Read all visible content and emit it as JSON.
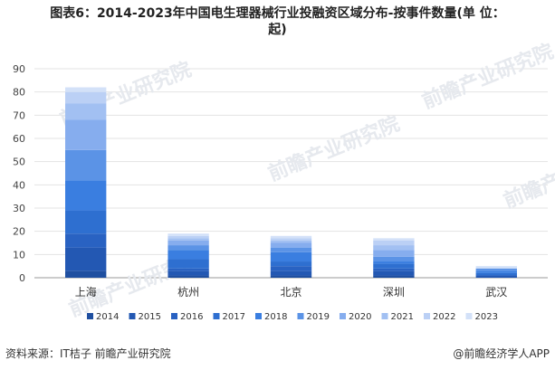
{
  "title_line1": "图表6：2014-2023年中国电生理器械行业投融资区域分布-按事件数量(单 位：",
  "title_line2": "起)",
  "source": "资料来源：IT桔子 前瞻产业研究院",
  "brand": "@前瞻经济学人APP",
  "watermark": "前瞻产业研究院",
  "chart_data": {
    "type": "bar",
    "stacked": true,
    "categories": [
      "上海",
      "杭州",
      "北京",
      "深圳",
      "武汉"
    ],
    "series": [
      {
        "name": "2014",
        "color": "#1f4fa0",
        "values": [
          3,
          1,
          1,
          1,
          0
        ]
      },
      {
        "name": "2015",
        "color": "#2358b3",
        "values": [
          10,
          2,
          2,
          2,
          1
        ]
      },
      {
        "name": "2016",
        "color": "#2962c2",
        "values": [
          6,
          1,
          2,
          1,
          0
        ]
      },
      {
        "name": "2017",
        "color": "#2e6fd0",
        "values": [
          10,
          4,
          2,
          2,
          1
        ]
      },
      {
        "name": "2018",
        "color": "#3a7ee0",
        "values": [
          13,
          4,
          4,
          1,
          1
        ]
      },
      {
        "name": "2019",
        "color": "#5b93e6",
        "values": [
          13,
          2,
          2,
          2,
          1
        ]
      },
      {
        "name": "2020",
        "color": "#86adee",
        "values": [
          13,
          2,
          2,
          3,
          0
        ]
      },
      {
        "name": "2021",
        "color": "#a2c0f2",
        "values": [
          7,
          1,
          1,
          2,
          0
        ]
      },
      {
        "name": "2022",
        "color": "#bbd0f5",
        "values": [
          5,
          1,
          1,
          2,
          0
        ]
      },
      {
        "name": "2023",
        "color": "#d3e1f8",
        "values": [
          2,
          1,
          1,
          1,
          1
        ]
      }
    ],
    "ylim": [
      0,
      90
    ],
    "yticks": [
      0,
      10,
      20,
      30,
      40,
      50,
      60,
      70,
      80,
      90
    ],
    "grid": true,
    "legend_position": "bottom"
  }
}
